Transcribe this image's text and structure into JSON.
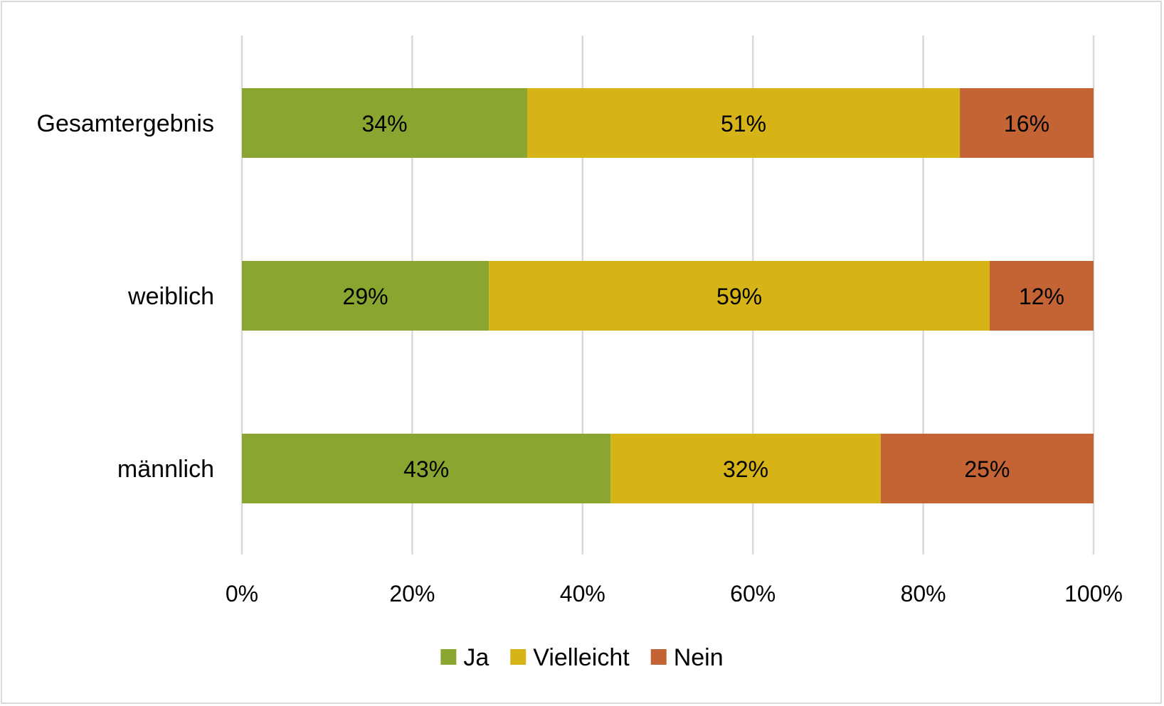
{
  "chart_data": {
    "type": "bar",
    "orientation": "horizontal",
    "stacking": "percent",
    "title": "",
    "xlabel": "",
    "ylabel": "",
    "xlim": [
      0,
      100
    ],
    "x_ticks": [
      0,
      20,
      40,
      60,
      80,
      100
    ],
    "x_tick_labels": [
      "0%",
      "20%",
      "40%",
      "60%",
      "80%",
      "100%"
    ],
    "categories": [
      "Gesamtergebnis",
      "weiblich",
      "männlich"
    ],
    "series": [
      {
        "name": "Ja",
        "color": "#8aa631",
        "values": [
          33.5,
          29,
          43.3
        ],
        "labels": [
          "34%",
          "29%",
          "43%"
        ]
      },
      {
        "name": "Vielleicht",
        "color": "#d6b418",
        "values": [
          50.8,
          58.8,
          31.7
        ],
        "labels": [
          "51%",
          "59%",
          "32%"
        ]
      },
      {
        "name": "Nein",
        "color": "#c46435",
        "values": [
          15.7,
          12.2,
          25.0
        ],
        "labels": [
          "16%",
          "12%",
          "25%"
        ]
      }
    ],
    "grid": true,
    "grid_color": "#d9d9d9",
    "legend": "bottom"
  }
}
